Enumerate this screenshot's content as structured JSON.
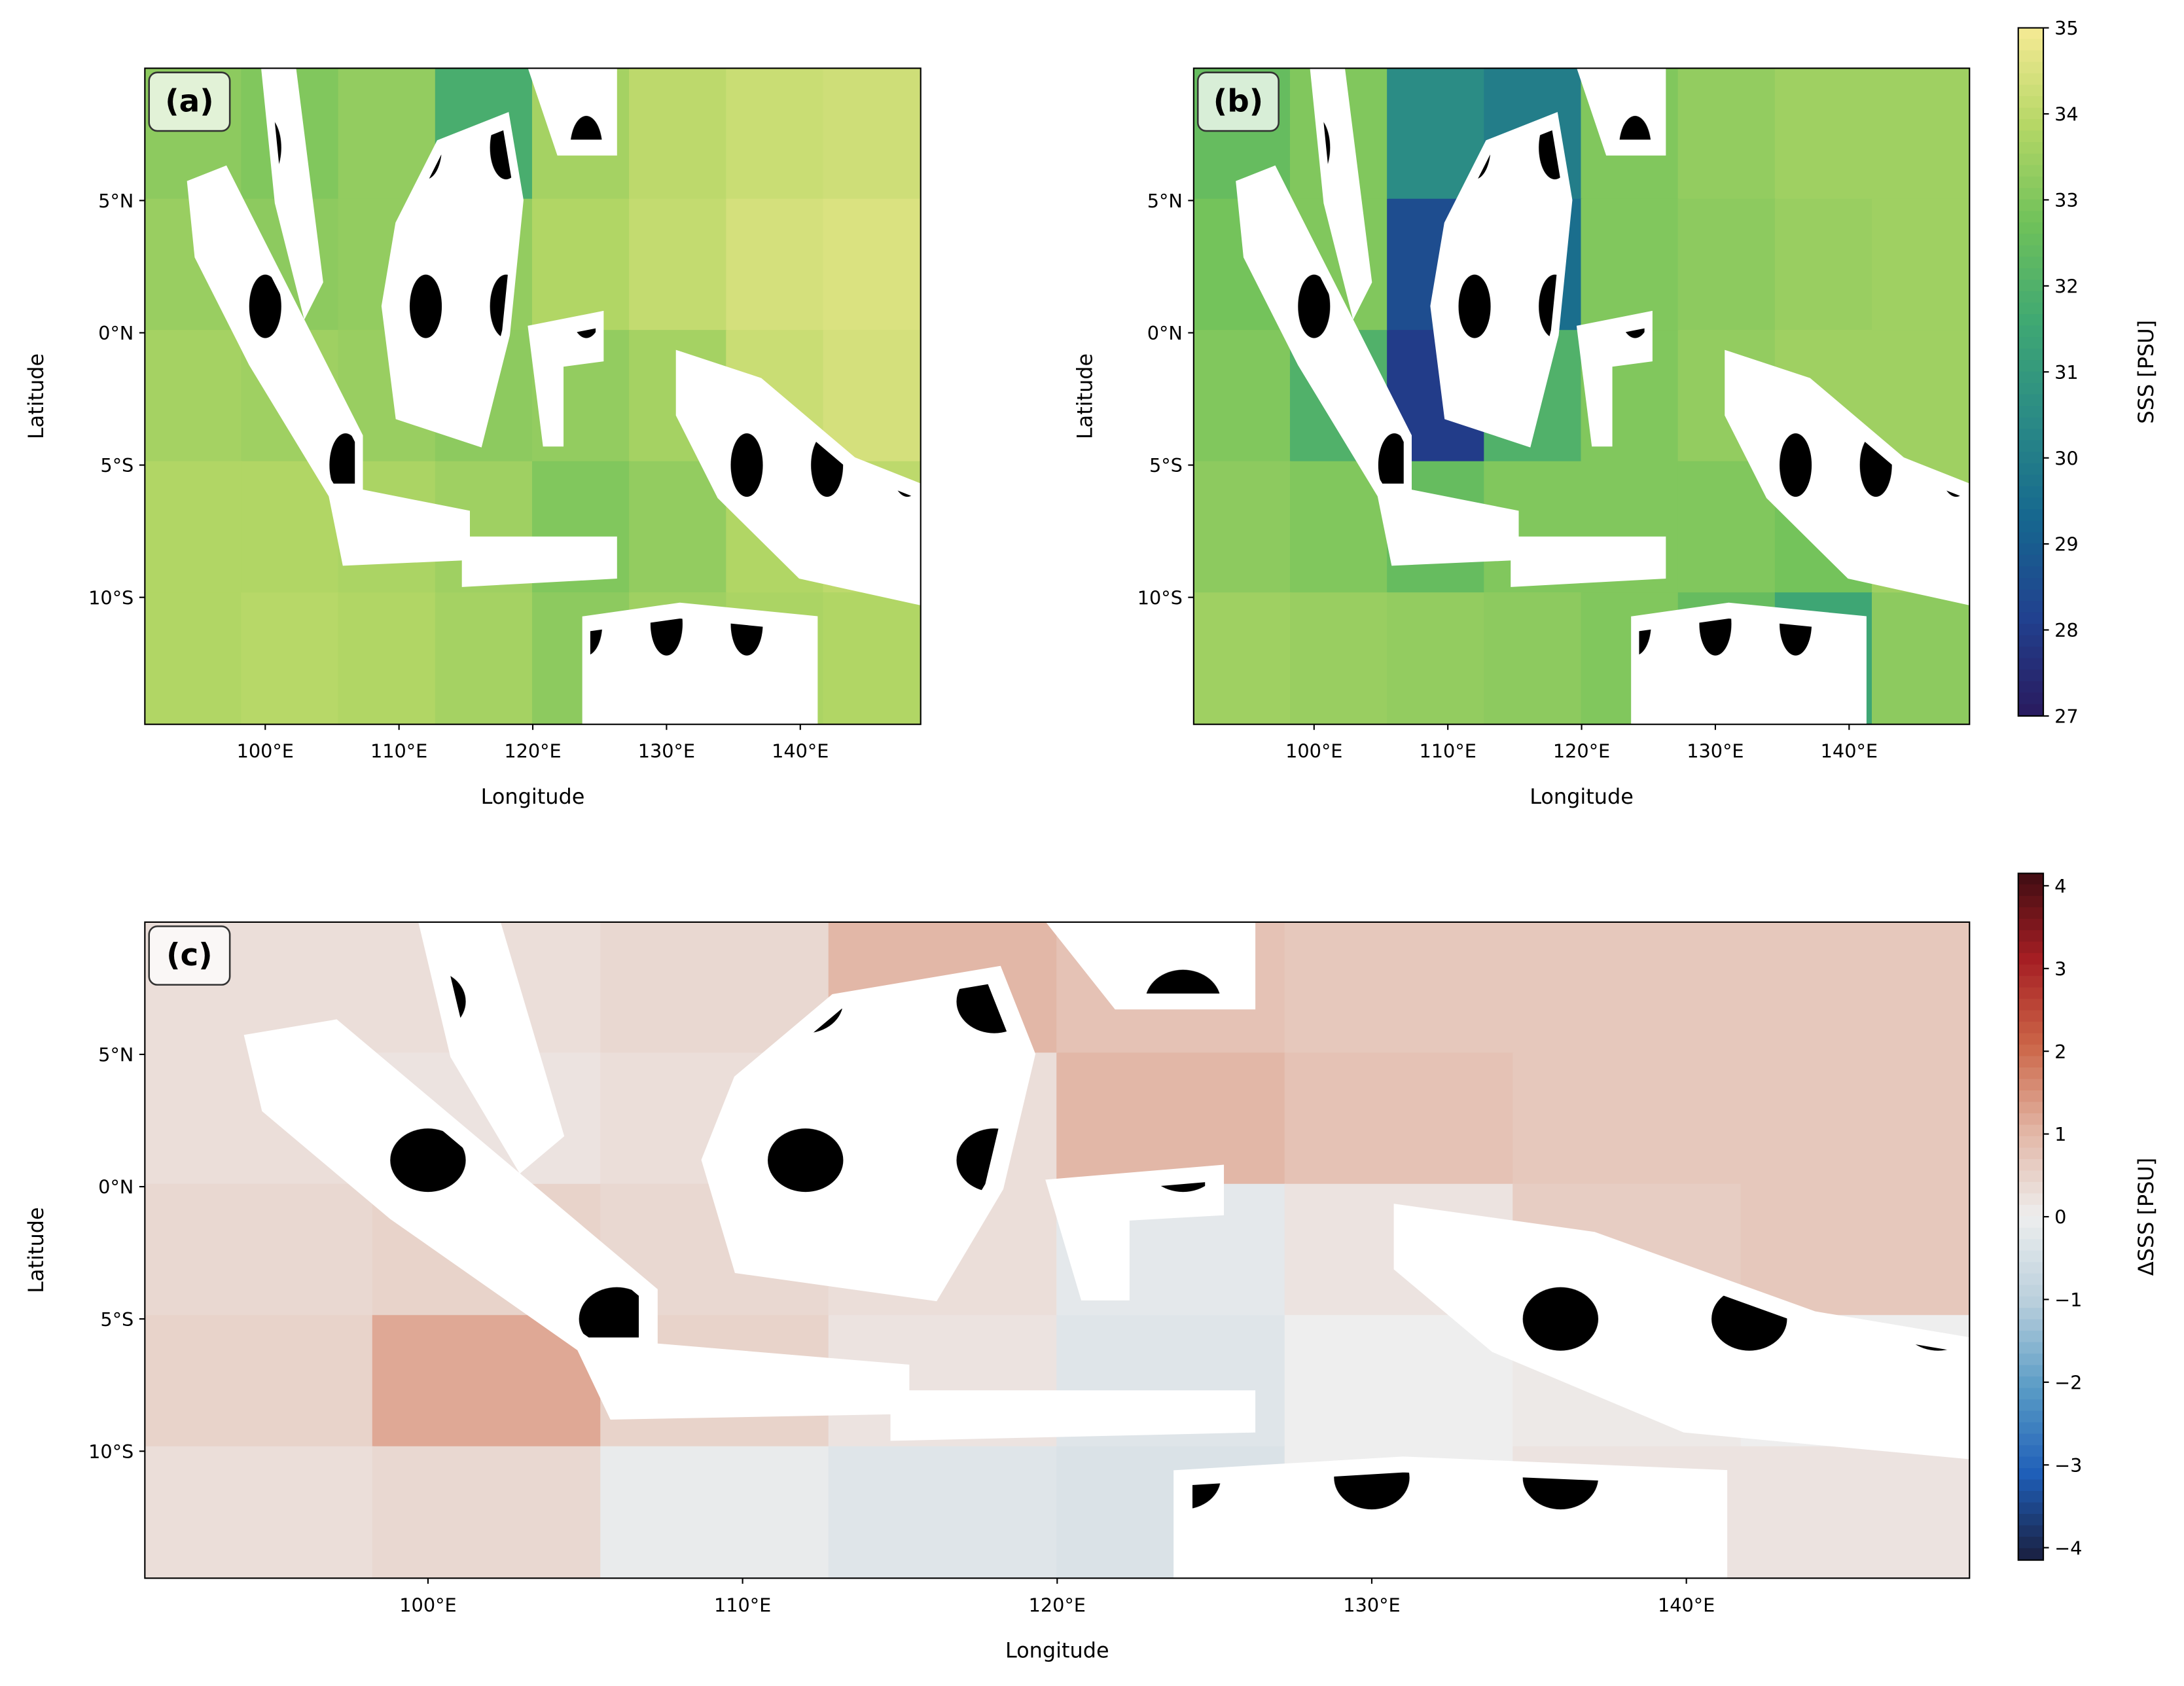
{
  "chart_data": [
    {
      "type": "heatmap",
      "label": "(a)",
      "xlabel": "Longitude",
      "ylabel": "Latitude",
      "xlim": [
        91,
        149
      ],
      "ylim": [
        -14.8,
        10
      ],
      "xticks": [
        {
          "value": 100,
          "label": "100°E"
        },
        {
          "value": 110,
          "label": "110°E"
        },
        {
          "value": 120,
          "label": "120°E"
        },
        {
          "value": 130,
          "label": "130°E"
        },
        {
          "value": 140,
          "label": "140°E"
        }
      ],
      "yticks": [
        {
          "value": 5,
          "label": "5°N"
        },
        {
          "value": 0,
          "label": "0°N"
        },
        {
          "value": -5,
          "label": "5°S"
        },
        {
          "value": -10,
          "label": "10°S"
        }
      ],
      "zlim": [
        27,
        35
      ],
      "colormap": [
        "#2a1a5e",
        "#21418f",
        "#16678f",
        "#2a8a86",
        "#3fa873",
        "#6fc15a",
        "#b5d766",
        "#f6ea95"
      ],
      "z": [
        [
          33.2,
          33.0,
          33.3,
          31.8,
          33.6,
          34.0,
          34.2,
          34.3
        ],
        [
          33.4,
          33.2,
          33.3,
          33.3,
          33.8,
          34.1,
          34.4,
          34.5
        ],
        [
          33.6,
          33.5,
          33.4,
          33.2,
          33.3,
          33.6,
          34.2,
          34.4
        ],
        [
          33.8,
          33.8,
          33.7,
          33.5,
          33.0,
          33.3,
          33.8,
          34.0
        ],
        [
          33.8,
          33.9,
          33.8,
          33.6,
          33.2,
          33.5,
          33.7,
          33.8
        ]
      ]
    },
    {
      "type": "heatmap",
      "label": "(b)",
      "xlabel": "Longitude",
      "ylabel": "Latitude",
      "xlim": [
        91,
        149
      ],
      "ylim": [
        -14.8,
        10
      ],
      "xticks": [
        {
          "value": 100,
          "label": "100°E"
        },
        {
          "value": 110,
          "label": "110°E"
        },
        {
          "value": 120,
          "label": "120°E"
        },
        {
          "value": 130,
          "label": "130°E"
        },
        {
          "value": 140,
          "label": "140°E"
        }
      ],
      "yticks": [
        {
          "value": 5,
          "label": "5°N"
        },
        {
          "value": 0,
          "label": "0°N"
        },
        {
          "value": -5,
          "label": "5°S"
        },
        {
          "value": -10,
          "label": "10°S"
        }
      ],
      "zlim": [
        27,
        35
      ],
      "colormap": [
        "#2a1a5e",
        "#21418f",
        "#16678f",
        "#2a8a86",
        "#3fa873",
        "#6fc15a",
        "#b5d766",
        "#f6ea95"
      ],
      "z": [
        [
          32.5,
          33.0,
          30.5,
          30.0,
          33.0,
          33.3,
          33.5,
          33.5
        ],
        [
          32.8,
          33.0,
          28.5,
          29.5,
          33.0,
          33.2,
          33.4,
          33.5
        ],
        [
          33.0,
          32.0,
          28.0,
          32.0,
          33.0,
          33.3,
          33.5,
          33.5
        ],
        [
          33.2,
          33.0,
          32.5,
          33.0,
          33.0,
          33.0,
          32.8,
          33.5
        ],
        [
          33.5,
          33.4,
          33.3,
          33.2,
          33.0,
          32.5,
          31.5,
          33.2
        ]
      ],
      "colorbar": {
        "label": "SSS [PSU]",
        "ticks": [
          27,
          28,
          29,
          30,
          31,
          32,
          33,
          34,
          35
        ]
      }
    },
    {
      "type": "heatmap",
      "label": "(c)",
      "xlabel": "Longitude",
      "ylabel": "Latitude",
      "xlim": [
        91,
        149
      ],
      "ylim": [
        -14.8,
        10
      ],
      "xticks": [
        {
          "value": 100,
          "label": "100°E"
        },
        {
          "value": 110,
          "label": "110°E"
        },
        {
          "value": 120,
          "label": "120°E"
        },
        {
          "value": 130,
          "label": "130°E"
        },
        {
          "value": 140,
          "label": "140°E"
        }
      ],
      "yticks": [
        {
          "value": 5,
          "label": "5°N"
        },
        {
          "value": 0,
          "label": "0°N"
        },
        {
          "value": -5,
          "label": "5°S"
        },
        {
          "value": -10,
          "label": "10°S"
        }
      ],
      "zlim": [
        -4.15,
        4.15
      ],
      "colormap": [
        "#1a1f3f",
        "#1f5fb8",
        "#5a9cc6",
        "#b9cfdc",
        "#eeeeee",
        "#e2b5a4",
        "#cc6547",
        "#a51e23",
        "#3f0d13"
      ],
      "z": [
        [
          0.3,
          0.3,
          0.4,
          1.0,
          0.8,
          0.7,
          0.7,
          0.7
        ],
        [
          0.3,
          0.2,
          0.3,
          0.3,
          1.0,
          0.8,
          0.7,
          0.7
        ],
        [
          0.4,
          0.5,
          0.4,
          0.3,
          -0.2,
          0.2,
          0.6,
          0.7
        ],
        [
          0.5,
          1.2,
          0.5,
          0.2,
          -0.3,
          0.0,
          0.1,
          0.0
        ],
        [
          0.3,
          0.4,
          -0.1,
          -0.3,
          -0.4,
          0.0,
          0.2,
          0.2
        ]
      ],
      "colorbar": {
        "label": "ΔSSS [PSU]",
        "ticks": [
          {
            "value": -4,
            "label": "−4"
          },
          {
            "value": -3,
            "label": "−3"
          },
          {
            "value": -2,
            "label": "−2"
          },
          {
            "value": -1,
            "label": "−1"
          },
          0,
          1,
          2,
          3,
          4
        ]
      }
    }
  ]
}
